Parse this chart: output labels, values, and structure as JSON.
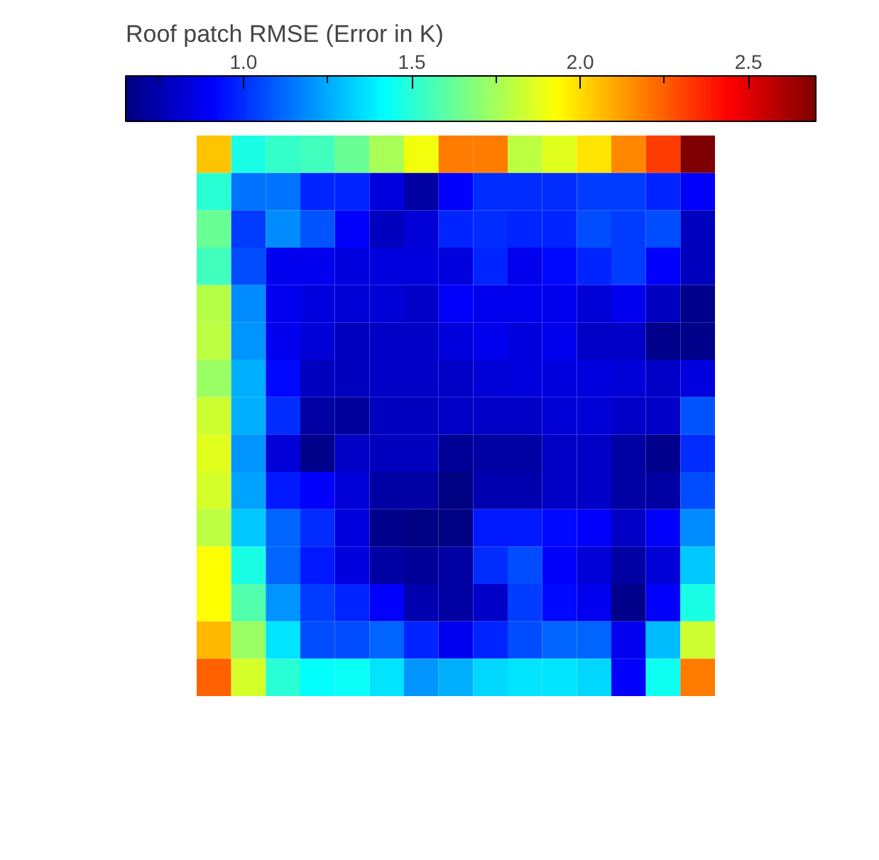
{
  "chart_data": {
    "type": "heatmap",
    "clabel": "Roof patch RMSE (Error in K)",
    "categories": [
      null,
      null,
      null,
      null,
      null,
      null,
      null,
      null,
      null,
      null,
      null,
      null,
      null,
      null,
      null
    ],
    "y_categories": [
      null,
      null,
      null,
      null,
      null,
      null,
      null,
      null,
      null,
      null,
      null,
      null,
      null,
      null,
      null
    ],
    "tick_labels": false,
    "clim": [
      0.65,
      2.7
    ],
    "cticks": [
      {
        "value": 0.75,
        "label": null
      },
      {
        "value": 1.0,
        "label": "1.0"
      },
      {
        "value": 1.25,
        "label": null
      },
      {
        "value": 1.5,
        "label": "1.5"
      },
      {
        "value": 1.75,
        "label": null
      },
      {
        "value": 2.0,
        "label": "2.0"
      },
      {
        "value": 2.25,
        "label": null
      },
      {
        "value": 2.5,
        "label": "2.5"
      }
    ],
    "cells": [
      [
        2.05,
        1.47,
        1.53,
        1.55,
        1.63,
        1.76,
        1.9,
        2.19,
        2.19,
        1.8,
        1.87,
        1.98,
        2.17,
        2.32,
        2.7
      ],
      [
        1.5,
        1.14,
        1.14,
        0.98,
        0.98,
        0.85,
        0.73,
        0.9,
        1.0,
        1.0,
        1.0,
        1.03,
        1.03,
        0.98,
        0.9
      ],
      [
        1.63,
        1.03,
        1.19,
        1.08,
        0.9,
        0.78,
        0.83,
        0.98,
        1.0,
        0.98,
        0.98,
        1.06,
        1.03,
        1.06,
        0.78
      ],
      [
        1.55,
        1.06,
        0.88,
        0.88,
        0.85,
        0.85,
        0.85,
        0.85,
        0.98,
        0.88,
        0.93,
        0.98,
        1.03,
        0.9,
        0.78
      ],
      [
        1.78,
        1.19,
        0.88,
        0.85,
        0.83,
        0.83,
        0.8,
        0.9,
        0.88,
        0.88,
        0.88,
        0.83,
        0.88,
        0.78,
        0.68
      ],
      [
        1.8,
        1.21,
        0.88,
        0.83,
        0.78,
        0.8,
        0.8,
        0.85,
        0.88,
        0.85,
        0.88,
        0.8,
        0.8,
        0.68,
        0.68
      ],
      [
        1.73,
        1.26,
        0.93,
        0.78,
        0.78,
        0.8,
        0.8,
        0.8,
        0.83,
        0.85,
        0.85,
        0.85,
        0.83,
        0.8,
        0.85
      ],
      [
        1.83,
        1.26,
        1.0,
        0.73,
        0.71,
        0.78,
        0.78,
        0.8,
        0.8,
        0.8,
        0.83,
        0.83,
        0.8,
        0.8,
        1.08
      ],
      [
        1.87,
        1.21,
        0.83,
        0.68,
        0.8,
        0.78,
        0.78,
        0.7,
        0.73,
        0.73,
        0.8,
        0.8,
        0.73,
        0.68,
        1.0
      ],
      [
        1.85,
        1.24,
        0.96,
        0.9,
        0.83,
        0.73,
        0.73,
        0.66,
        0.75,
        0.75,
        0.8,
        0.8,
        0.73,
        0.73,
        1.06
      ],
      [
        1.8,
        1.31,
        1.11,
        1.0,
        0.85,
        0.68,
        0.66,
        0.66,
        0.96,
        0.96,
        0.93,
        0.9,
        0.8,
        0.9,
        1.19
      ],
      [
        1.93,
        1.47,
        1.11,
        0.96,
        0.85,
        0.73,
        0.7,
        0.73,
        1.0,
        1.06,
        0.9,
        0.83,
        0.73,
        0.83,
        1.31
      ],
      [
        1.93,
        1.58,
        1.21,
        1.03,
        0.98,
        0.9,
        0.75,
        0.73,
        0.8,
        1.03,
        0.93,
        0.88,
        0.68,
        0.9,
        1.47
      ],
      [
        2.07,
        1.73,
        1.37,
        1.06,
        1.06,
        1.11,
        0.98,
        0.88,
        0.98,
        1.06,
        1.11,
        1.11,
        0.88,
        1.29,
        1.83
      ],
      [
        2.25,
        1.85,
        1.5,
        1.42,
        1.44,
        1.37,
        1.21,
        1.26,
        1.34,
        1.37,
        1.37,
        1.34,
        0.9,
        1.45,
        2.19
      ]
    ]
  }
}
